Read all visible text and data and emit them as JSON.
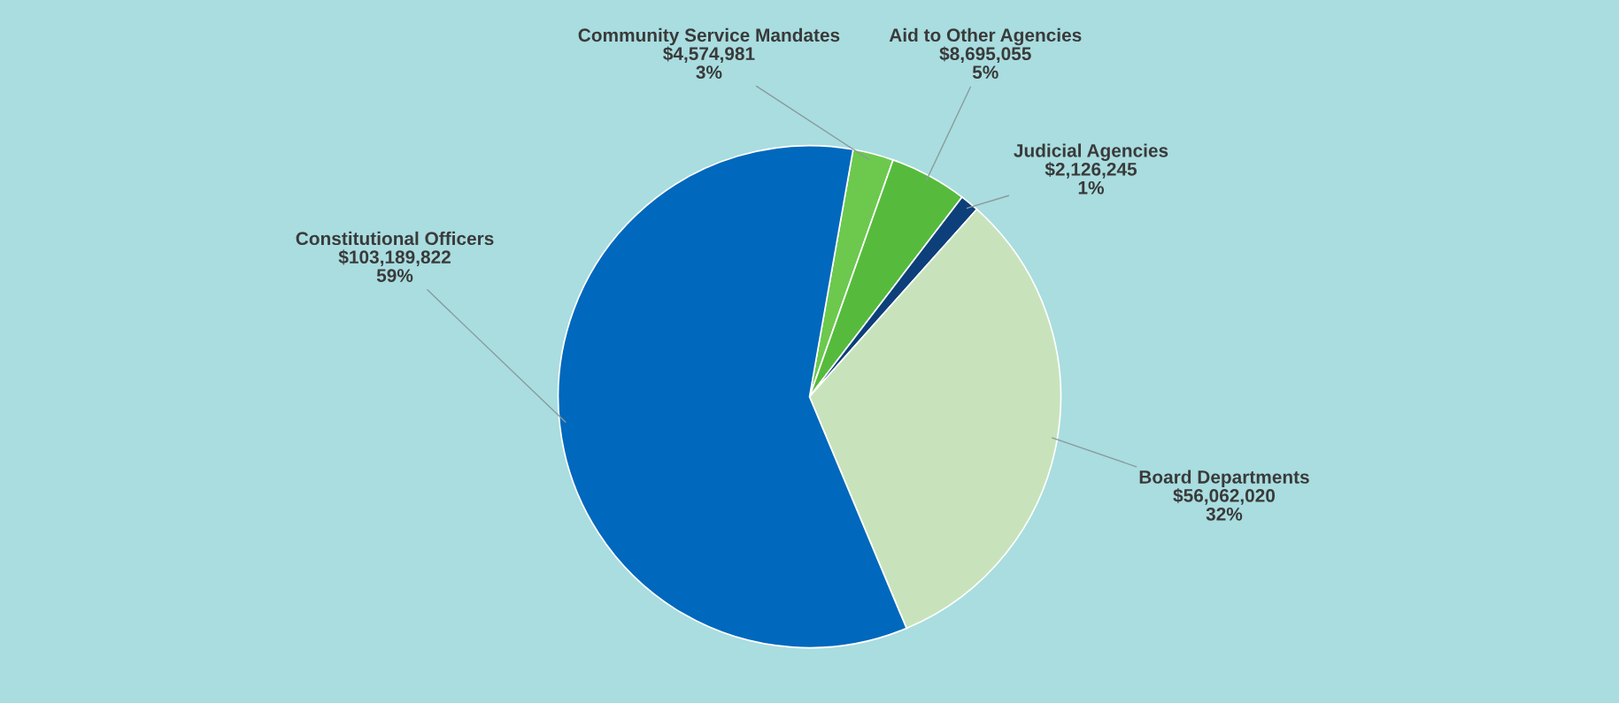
{
  "chart_data": {
    "type": "pie",
    "categories": [
      "Community Service Mandates",
      "Aid to Other Agencies",
      "Judicial Agencies",
      "Board Departments",
      "Constitutional Officers"
    ],
    "values": [
      4574981,
      8695055,
      2126245,
      56062020,
      103189822
    ],
    "value_labels": [
      "$4,574,981\n3%",
      "$8,695,055\n5%",
      "$2,126,245\n1%",
      "$56,062,020\n32%",
      "$103,189,822\n59%"
    ],
    "colors": [
      "#6cc94e",
      "#56bb3c",
      "#0d3f7a",
      "#c8e3bb",
      "#0068bd"
    ]
  }
}
